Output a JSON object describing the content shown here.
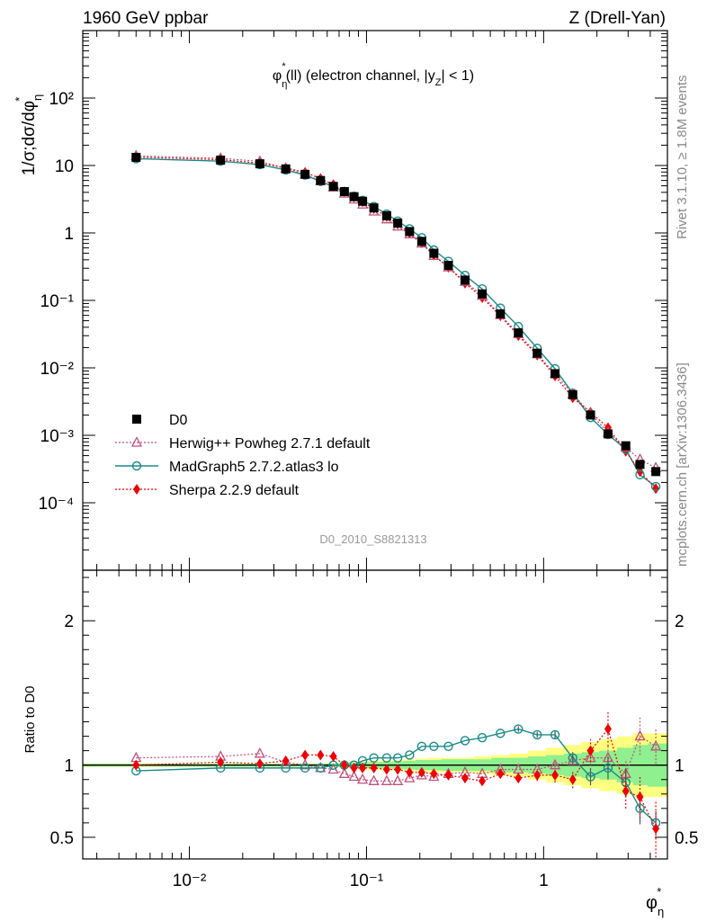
{
  "header": {
    "left": "1960 GeV ppbar",
    "right": "Z (Drell-Yan)"
  },
  "side_labels": {
    "rivet": "Rivet 3.1.10, ≥ 1.8M events",
    "source": "mcplots.cern.ch [arXiv:1306.3436]"
  },
  "analysis_id": "D0_2010_S8821313",
  "colors": {
    "data": "#000000",
    "herwig": "#c0507a",
    "madgraph": "#1a8a8a",
    "sherpa": "#ee0000",
    "band_inner": "#8ef08e",
    "band_outer": "#ffff80"
  },
  "chart_data": [
    {
      "type": "scatter",
      "title": "φ*η(ll) (electron channel, |yZ| < 1)",
      "ylabel": "1/σ;dσ/dφ*η",
      "xlabel": "φ*η",
      "xscale": "log",
      "yscale": "log",
      "xlim": [
        0.0025,
        5.0
      ],
      "ylim": [
        1e-05,
        1000
      ],
      "y_tick_labels": [
        "10⁻⁴",
        "10⁻³",
        "10⁻²",
        "10⁻¹",
        "1",
        "10",
        "10²"
      ],
      "x": [
        0.005,
        0.015,
        0.025,
        0.035,
        0.045,
        0.055,
        0.065,
        0.075,
        0.085,
        0.095,
        0.11,
        0.13,
        0.15,
        0.175,
        0.205,
        0.24,
        0.29,
        0.36,
        0.45,
        0.57,
        0.72,
        0.92,
        1.16,
        1.46,
        1.84,
        2.31,
        2.91,
        3.5,
        4.3
      ],
      "legend_position": "bottom-left",
      "series": [
        {
          "name": "D0",
          "marker": "square",
          "values": [
            13.2,
            12.0,
            10.6,
            8.9,
            7.4,
            6.0,
            4.9,
            4.1,
            3.45,
            2.95,
            2.35,
            1.8,
            1.4,
            1.05,
            0.75,
            0.5,
            0.33,
            0.2,
            0.125,
            0.063,
            0.033,
            0.0165,
            0.0082,
            0.004,
            0.002,
            0.00105,
            0.0007,
            0.00037,
            0.00029
          ]
        },
        {
          "name": "Herwig++ Powheg 2.7.1 default",
          "marker": "triangle",
          "values": [
            13.9,
            12.8,
            11.5,
            9.1,
            7.4,
            5.9,
            4.75,
            3.85,
            3.15,
            2.65,
            2.09,
            1.6,
            1.25,
            0.96,
            0.7,
            0.46,
            0.31,
            0.19,
            0.118,
            0.061,
            0.032,
            0.016,
            0.0082,
            0.0041,
            0.0021,
            0.0011,
            0.00066,
            0.00044,
            0.00033
          ]
        },
        {
          "name": "MadGraph5 2.7.2.atlas3 lo",
          "marker": "circle",
          "values": [
            12.6,
            11.6,
            10.3,
            8.6,
            7.2,
            5.8,
            4.9,
            4.1,
            3.5,
            3.05,
            2.47,
            1.9,
            1.5,
            1.15,
            0.85,
            0.56,
            0.38,
            0.235,
            0.148,
            0.077,
            0.041,
            0.0195,
            0.0097,
            0.0042,
            0.00184,
            0.00103,
            0.00062,
            0.00026,
            0.000174
          ]
        },
        {
          "name": "Sherpa 2.2.9 default",
          "marker": "diamond",
          "values": [
            13.3,
            12.2,
            10.8,
            9.2,
            7.9,
            6.4,
            5.2,
            4.1,
            3.4,
            2.9,
            2.3,
            1.75,
            1.36,
            1.0,
            0.71,
            0.47,
            0.31,
            0.18,
            0.11,
            0.059,
            0.03,
            0.0154,
            0.0076,
            0.0036,
            0.0022,
            0.0013,
            0.00058,
            0.00029,
            0.000162
          ]
        }
      ]
    },
    {
      "type": "scatter",
      "ylabel": "Ratio to D0",
      "xlabel": "φ*η",
      "xscale": "log",
      "xlim": [
        0.0025,
        5.0
      ],
      "ylim": [
        0.35,
        2.35
      ],
      "y_tick_labels": [
        "0.5",
        "1",
        "2"
      ],
      "x_tick_labels": [
        "10⁻²",
        "10⁻¹",
        "1"
      ],
      "x": [
        0.005,
        0.015,
        0.025,
        0.035,
        0.045,
        0.055,
        0.065,
        0.075,
        0.085,
        0.095,
        0.11,
        0.13,
        0.15,
        0.175,
        0.205,
        0.24,
        0.29,
        0.36,
        0.45,
        0.57,
        0.72,
        0.92,
        1.16,
        1.46,
        1.84,
        2.31,
        2.91,
        3.5,
        4.3
      ],
      "band_inner": [
        0.01,
        0.01,
        0.01,
        0.01,
        0.01,
        0.01,
        0.012,
        0.015,
        0.018,
        0.02,
        0.02,
        0.022,
        0.025,
        0.03,
        0.035,
        0.035,
        0.04,
        0.04,
        0.04,
        0.05,
        0.05,
        0.06,
        0.07,
        0.08,
        0.09,
        0.1,
        0.12,
        0.14,
        0.15
      ],
      "band_outer": [
        0.012,
        0.012,
        0.012,
        0.012,
        0.012,
        0.012,
        0.015,
        0.02,
        0.025,
        0.03,
        0.03,
        0.033,
        0.035,
        0.04,
        0.045,
        0.05,
        0.05,
        0.05,
        0.06,
        0.07,
        0.08,
        0.1,
        0.12,
        0.14,
        0.16,
        0.18,
        0.2,
        0.22,
        0.22
      ],
      "series": [
        {
          "name": "Herwig++ Powheg 2.7.1 default",
          "marker": "triangle",
          "values": [
            1.05,
            1.06,
            1.08,
            1.02,
            1.0,
            0.98,
            0.97,
            0.94,
            0.92,
            0.9,
            0.89,
            0.89,
            0.89,
            0.91,
            0.93,
            0.92,
            0.94,
            0.95,
            0.94,
            0.97,
            0.97,
            0.97,
            1.0,
            1.03,
            1.05,
            1.05,
            0.94,
            1.2,
            1.13
          ],
          "errors": [
            0.01,
            0.01,
            0.01,
            0.01,
            0.01,
            0.01,
            0.01,
            0.01,
            0.01,
            0.01,
            0.01,
            0.01,
            0.01,
            0.01,
            0.01,
            0.01,
            0.01,
            0.01,
            0.01,
            0.01,
            0.01,
            0.01,
            0.02,
            0.03,
            0.05,
            0.08,
            0.1,
            0.13,
            0.12
          ]
        },
        {
          "name": "MadGraph5 2.7.2.atlas3 lo",
          "marker": "circle",
          "values": [
            0.96,
            0.98,
            0.98,
            0.98,
            0.98,
            0.98,
            1.0,
            1.0,
            1.0,
            1.03,
            1.05,
            1.05,
            1.05,
            1.07,
            1.13,
            1.13,
            1.13,
            1.17,
            1.19,
            1.22,
            1.25,
            1.21,
            1.21,
            1.05,
            0.92,
            0.98,
            0.88,
            0.7,
            0.6
          ],
          "errors": [
            0.01,
            0.01,
            0.01,
            0.01,
            0.01,
            0.01,
            0.01,
            0.01,
            0.01,
            0.01,
            0.01,
            0.01,
            0.01,
            0.01,
            0.01,
            0.01,
            0.01,
            0.01,
            0.01,
            0.01,
            0.02,
            0.02,
            0.03,
            0.04,
            0.06,
            0.08,
            0.1,
            0.11,
            0.08
          ]
        },
        {
          "name": "Sherpa 2.2.9 default",
          "marker": "diamond",
          "values": [
            1.0,
            1.02,
            1.01,
            1.03,
            1.07,
            1.07,
            1.06,
            1.0,
            0.98,
            0.98,
            0.98,
            0.97,
            0.97,
            0.95,
            0.95,
            0.94,
            0.93,
            0.91,
            0.89,
            0.94,
            0.91,
            0.93,
            0.93,
            0.9,
            1.1,
            1.25,
            0.82,
            0.78,
            0.56
          ],
          "errors": [
            0.01,
            0.01,
            0.01,
            0.01,
            0.01,
            0.01,
            0.01,
            0.01,
            0.01,
            0.01,
            0.01,
            0.01,
            0.01,
            0.01,
            0.01,
            0.01,
            0.01,
            0.02,
            0.02,
            0.03,
            0.03,
            0.04,
            0.05,
            0.06,
            0.08,
            0.12,
            0.12,
            0.15,
            0.2
          ]
        }
      ]
    }
  ]
}
